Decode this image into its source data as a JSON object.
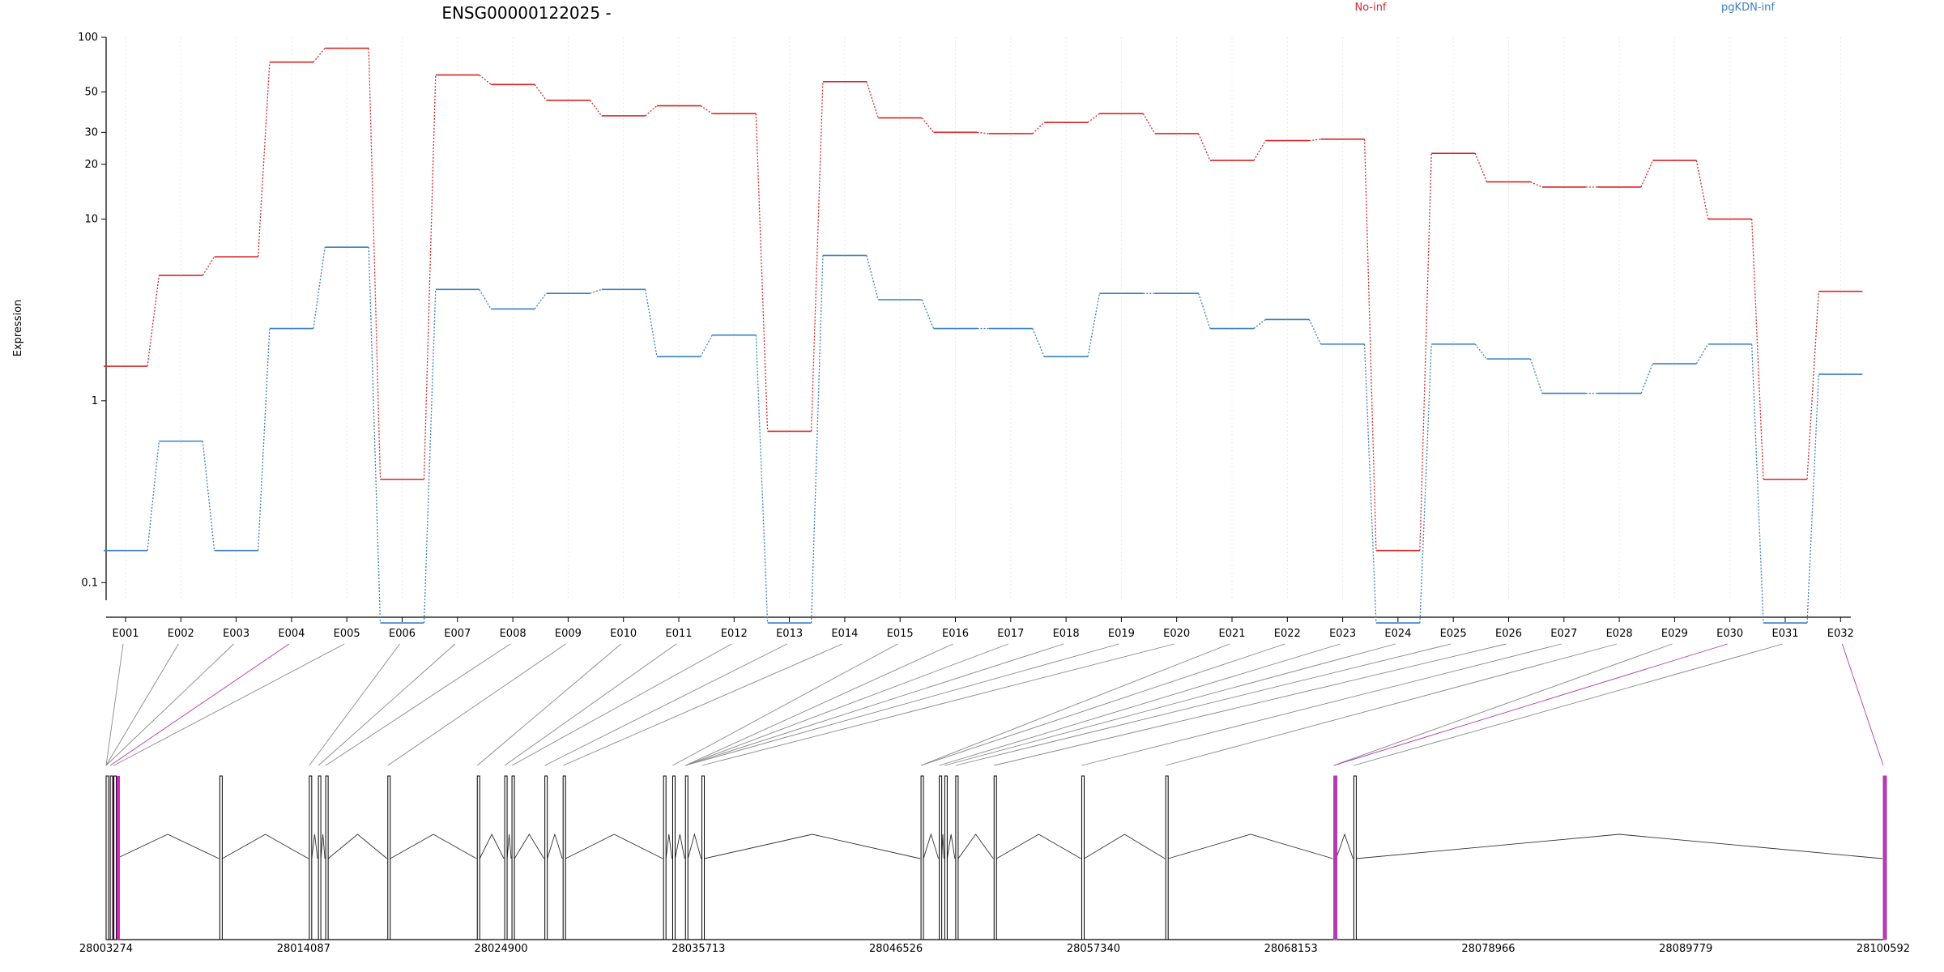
{
  "chart_data": {
    "type": "line",
    "title": "ENSG00000122025 -",
    "ylabel": "Expression",
    "yscale": "log",
    "ylim": [
      0.08,
      100
    ],
    "yticks": [
      "100",
      "50",
      "30",
      "20",
      "10",
      "1",
      "0.1"
    ],
    "ytick_values": [
      100,
      50,
      30,
      20,
      10,
      1,
      0.1
    ],
    "grid": "vertical",
    "categories": [
      "E001",
      "E002",
      "E003",
      "E004",
      "E005",
      "E006",
      "E007",
      "E008",
      "E009",
      "E010",
      "E011",
      "E012",
      "E013",
      "E014",
      "E015",
      "E016",
      "E017",
      "E018",
      "E019",
      "E020",
      "E021",
      "E022",
      "E023",
      "E024",
      "E025",
      "E026",
      "E027",
      "E028",
      "E029",
      "E030",
      "E031",
      "E032"
    ],
    "series": [
      {
        "name": "No-inf",
        "color": "#d62728",
        "values": [
          1.55,
          4.9,
          6.2,
          73,
          87,
          0.37,
          62,
          55,
          45,
          37,
          42,
          38,
          0.68,
          57,
          36,
          30,
          29.5,
          34,
          38,
          29.5,
          21,
          27,
          27.5,
          0.15,
          23,
          16,
          15,
          15,
          21,
          10,
          0.37,
          4
        ]
      },
      {
        "name": "pgKDN-inf",
        "color": "#3a7fc1",
        "values": [
          0.15,
          0.6,
          0.15,
          2.5,
          7,
          0.06,
          4.1,
          3.2,
          3.9,
          4.1,
          1.75,
          2.3,
          0.06,
          6.3,
          3.6,
          2.5,
          2.5,
          1.75,
          3.9,
          3.9,
          2.5,
          2.8,
          2.05,
          0.06,
          2.05,
          1.7,
          1.1,
          1.1,
          1.6,
          2.05,
          0.06,
          1.4
        ]
      }
    ],
    "gene_model": {
      "genome_start": 28003274,
      "genome_end": 28100592,
      "axis_labels": [
        "28003274",
        "28014087",
        "28024900",
        "28035713",
        "28046526",
        "28057340",
        "28068153",
        "28078966",
        "28089779",
        "28100592"
      ],
      "axis_values": [
        28003274,
        28014087,
        28024900,
        28035713,
        28046526,
        28057340,
        28068153,
        28078966,
        28089779,
        28100592
      ],
      "exon_positions": [
        28003274,
        28003500,
        28003700,
        28009500,
        28014400,
        28014900,
        28015300,
        28018700,
        28023600,
        28025100,
        28025500,
        28027300,
        28028300,
        28033800,
        28034300,
        28035000,
        28035900,
        28047900,
        28048900,
        28049200,
        28049800,
        28051900,
        28056700,
        28061300,
        28070500,
        28071600,
        28100592
      ],
      "highlighted_exons": [
        "E004",
        "E030",
        "E032"
      ],
      "highlight_color": "#b23ab2"
    }
  }
}
